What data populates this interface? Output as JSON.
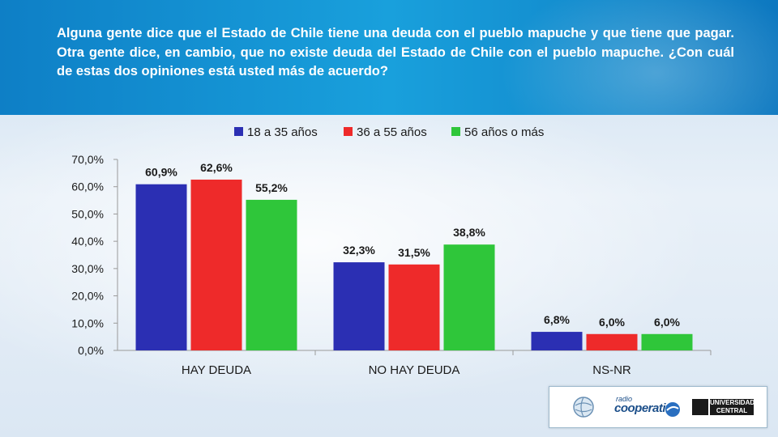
{
  "question": "Alguna gente dice que el Estado de Chile tiene una deuda con el pueblo mapuche y que tiene que pagar. Otra gente dice, en cambio, que no existe deuda del Estado de Chile con el pueblo mapuche. ¿Con cuál de estas dos opiniones está usted más de acuerdo?",
  "colors": {
    "series1": "#2b2fb3",
    "series2": "#ee2a2a",
    "series3": "#2fc63a",
    "header": "#1190d2"
  },
  "footer": {
    "radio_label": "radio",
    "coop_label": "cooperativa",
    "uc_label": "UNIVERSIDAD CENTRAL"
  },
  "chart_data": {
    "type": "bar",
    "categories": [
      "HAY DEUDA",
      "NO HAY DEUDA",
      "NS-NR"
    ],
    "series": [
      {
        "name": "18 a 35 años",
        "values": [
          60.9,
          32.3,
          6.8
        ],
        "labels": [
          "60,9%",
          "32,3%",
          "6,8%"
        ]
      },
      {
        "name": "36 a 55 años",
        "values": [
          62.6,
          31.5,
          6.0
        ],
        "labels": [
          "62,6%",
          "31,5%",
          "6,0%"
        ]
      },
      {
        "name": "56 años o más",
        "values": [
          55.2,
          38.8,
          6.0
        ],
        "labels": [
          "55,2%",
          "38,8%",
          "6,0%"
        ]
      }
    ],
    "ylim": [
      0,
      70
    ],
    "yticks": [
      0,
      10,
      20,
      30,
      40,
      50,
      60,
      70
    ],
    "ytick_labels": [
      "0,0%",
      "10,0%",
      "20,0%",
      "30,0%",
      "40,0%",
      "50,0%",
      "60,0%",
      "70,0%"
    ],
    "legend_position": "top",
    "grid": false
  }
}
